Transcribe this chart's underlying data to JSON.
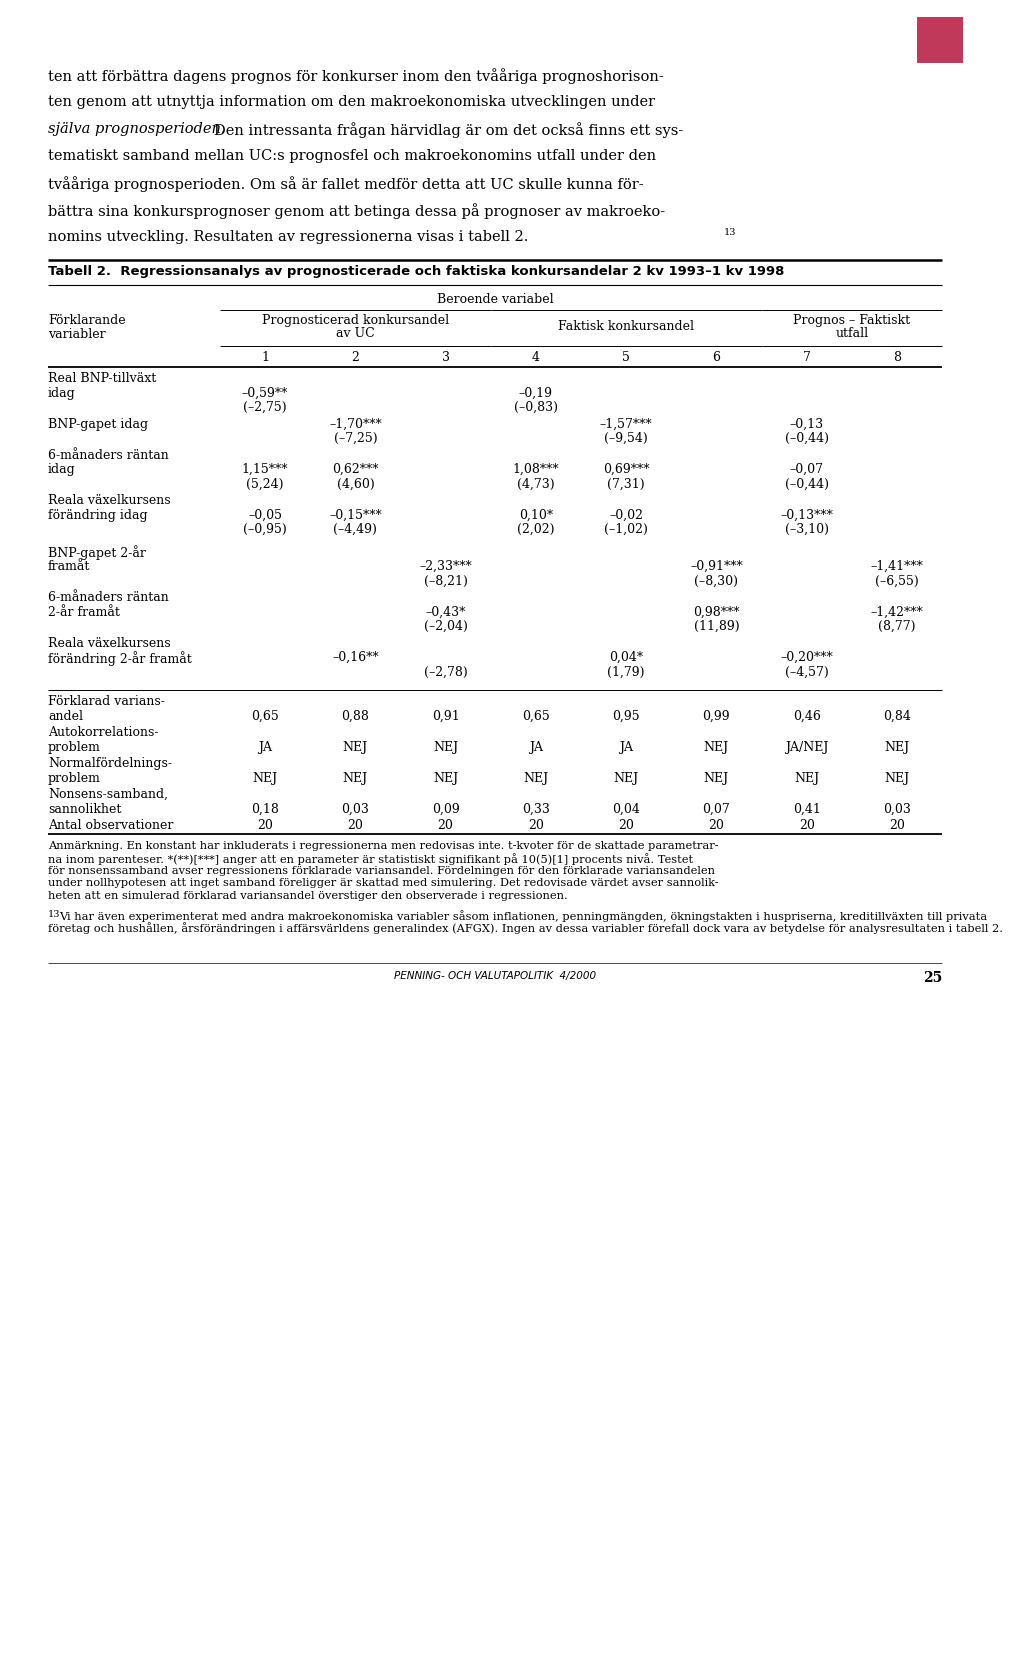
{
  "red_square_color": "#c0395a",
  "intro1": "ten att förbättra dagens prognos för konkurser inom den tvååriga prognoshorison-",
  "intro2": "ten genom att utnyttja information om den makroekonomiska utvecklingen under",
  "intro3_italic": "själva prognosperioden.",
  "intro3_normal": "Den intressanta frågan härvidlag är om det också finns ett sys-",
  "intro4": "tematiskt samband mellan UC:s prognosfel och makroekonomins utfall under den",
  "intro5": "tvååriga prognosperioden. Om så är fallet medför detta att UC skulle kunna för-",
  "intro6": "bättra sina konkursprognoser genom att betinga dessa på prognoser av makroeko-",
  "intro7": "nomins utveckling. Resultaten av regressionerna visas i tabell 2.",
  "table_title": "Tabell 2.  Regressionsanalys av prognosticerade och faktiska konkursandelar 2 kv 1993–1 kv 1998",
  "beroende": "Beroende variabel",
  "lh1": "Förklarande",
  "lh2": "variabler",
  "g1": "Prognosticerad konkursandel",
  "g1b": "av UC",
  "g2": "Faktisk konkursandel",
  "g3a": "Prognos – Faktiskt",
  "g3b": "utfall",
  "anm1": "Anmärkning. En konstant har inkluderats i regressionerna men redovisas inte. t-kvoter för de skattade parametrar-",
  "anm2": "na inom parenteser. *(**)[***] anger att en parameter är statistiskt signifikant på 10(5)[1] procents nivå. Testet",
  "anm3": "för nonsenssamband avser regressionens förklarade variansandel. Fördelningen för den förklarade variansandelen",
  "anm4": "under nollhypotesen att inget samband föreligger är skattad med simulering. Det redovisade värdet avser sannolik-",
  "anm5": "heten att en simulerad förklarad variansandel överstiger den observerade i regressionen.",
  "fn1": "Vi har även experimenterat med andra makroekonomiska variabler såsom inflationen, penningmängden, ökningstakten i huspriserna, kreditillväxten till privata",
  "fn2": "företag och hushållen, årsförändringen i affärsvärldens generalindex (AFGX). Ingen av dessa variabler förefall dock vara av betydelse för analysresultaten i tabell 2.",
  "footer": "PENNING- OCH VALUTAPOLITIK  4/2000",
  "page": "25"
}
